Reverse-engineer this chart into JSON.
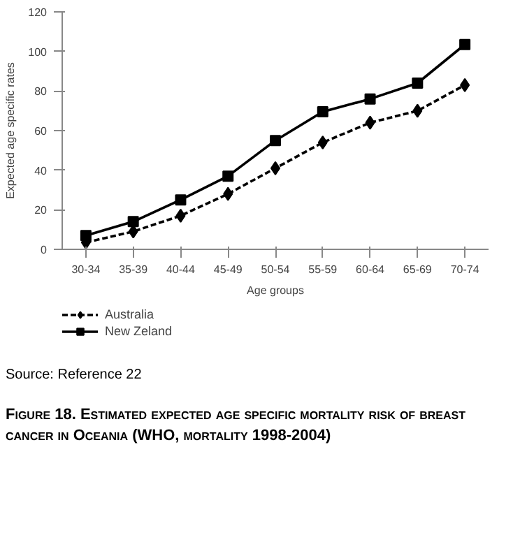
{
  "chart_data": {
    "type": "line",
    "title": "Figure 18. Estimated expected age specific mortality risk of  breast  cancer in Oceania (WHO, mortality 1998-2004)",
    "xlabel": "Age groups",
    "ylabel": "Expected age specific rates",
    "categories": [
      "30-34",
      "35-39",
      "40-44",
      "45-49",
      "50-54",
      "55-59",
      "60-64",
      "65-69",
      "70-74"
    ],
    "series": [
      {
        "name": "Australia",
        "color": "#000000",
        "line_style": "dashed",
        "marker": "diamond",
        "values": [
          3.5,
          9,
          17,
          28,
          41,
          54,
          64,
          70,
          83
        ]
      },
      {
        "name": "New Zeland",
        "color": "#000000",
        "line_style": "solid",
        "marker": "square",
        "values": [
          7,
          14,
          25,
          37,
          55,
          69.5,
          76,
          84,
          103.5
        ]
      }
    ],
    "ylim": [
      0,
      120
    ],
    "yticks": [
      0,
      20,
      40,
      60,
      80,
      100,
      120
    ],
    "grid": false,
    "legend": "bottom left",
    "annotations": [
      "Source: Reference 22"
    ]
  }
}
